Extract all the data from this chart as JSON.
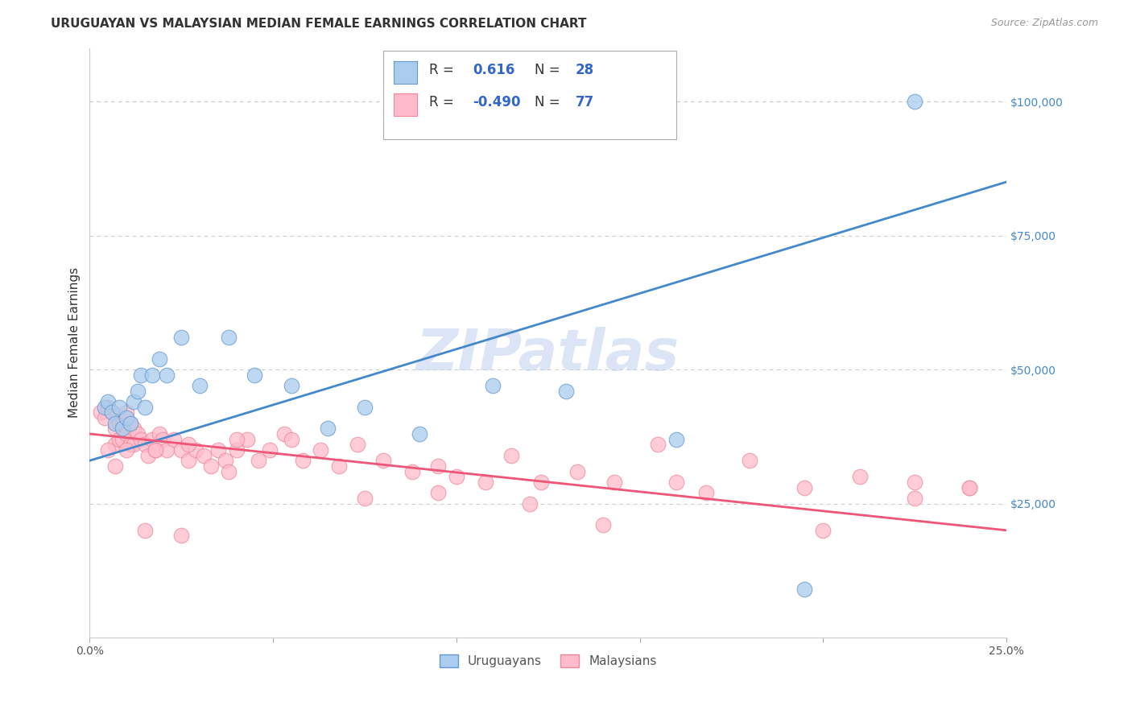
{
  "title": "URUGUAYAN VS MALAYSIAN MEDIAN FEMALE EARNINGS CORRELATION CHART",
  "source": "Source: ZipAtlas.com",
  "ylabel": "Median Female Earnings",
  "xlim": [
    0.0,
    0.25
  ],
  "ylim": [
    0,
    110000
  ],
  "x_ticks": [
    0.0,
    0.05,
    0.1,
    0.15,
    0.2,
    0.25
  ],
  "x_tick_labels": [
    "0.0%",
    "",
    "",
    "",
    "",
    "25.0%"
  ],
  "y_tick_labels_right": [
    "$25,000",
    "$50,000",
    "$75,000",
    "$100,000"
  ],
  "y_tick_values_right": [
    25000,
    50000,
    75000,
    100000
  ],
  "background_color": "#ffffff",
  "grid_color": "#cccccc",
  "blue_fill_color": "#AACCEE",
  "pink_fill_color": "#FFBBCC",
  "blue_edge_color": "#6699CC",
  "pink_edge_color": "#EE8899",
  "blue_line_color": "#4488CC",
  "pink_line_color": "#EE5577",
  "legend_text_color": "#333333",
  "legend_num_color": "#3366CC",
  "watermark": "ZIPatlas",
  "watermark_color": "#BBCCEE",
  "blue_line_x0": 0.0,
  "blue_line_y0": 33000,
  "blue_line_x1": 0.25,
  "blue_line_y1": 85000,
  "pink_line_x0": 0.0,
  "pink_line_y0": 38000,
  "pink_line_x1": 0.25,
  "pink_line_y1": 20000,
  "blue_scatter_x": [
    0.004,
    0.005,
    0.006,
    0.007,
    0.008,
    0.009,
    0.01,
    0.011,
    0.012,
    0.013,
    0.014,
    0.015,
    0.017,
    0.019,
    0.021,
    0.025,
    0.03,
    0.038,
    0.045,
    0.055,
    0.065,
    0.075,
    0.09,
    0.11,
    0.13,
    0.16,
    0.195,
    0.225
  ],
  "blue_scatter_y": [
    43000,
    44000,
    42000,
    40000,
    43000,
    39000,
    41000,
    40000,
    44000,
    46000,
    49000,
    43000,
    49000,
    52000,
    49000,
    56000,
    47000,
    56000,
    49000,
    47000,
    39000,
    43000,
    38000,
    47000,
    46000,
    37000,
    9000,
    100000
  ],
  "pink_scatter_x": [
    0.003,
    0.004,
    0.005,
    0.006,
    0.007,
    0.007,
    0.008,
    0.008,
    0.009,
    0.009,
    0.01,
    0.01,
    0.011,
    0.011,
    0.012,
    0.012,
    0.013,
    0.014,
    0.015,
    0.016,
    0.017,
    0.018,
    0.019,
    0.02,
    0.021,
    0.023,
    0.025,
    0.027,
    0.029,
    0.031,
    0.033,
    0.035,
    0.037,
    0.04,
    0.043,
    0.046,
    0.049,
    0.053,
    0.058,
    0.063,
    0.068,
    0.073,
    0.08,
    0.088,
    0.095,
    0.1,
    0.108,
    0.115,
    0.123,
    0.133,
    0.143,
    0.155,
    0.168,
    0.18,
    0.195,
    0.21,
    0.225,
    0.24,
    0.007,
    0.015,
    0.025,
    0.038,
    0.055,
    0.075,
    0.095,
    0.12,
    0.14,
    0.16,
    0.2,
    0.225,
    0.24,
    0.005,
    0.01,
    0.018,
    0.027,
    0.04
  ],
  "pink_scatter_y": [
    42000,
    41000,
    43000,
    42000,
    39000,
    36000,
    40000,
    37000,
    40000,
    37000,
    42000,
    38000,
    40000,
    36000,
    39000,
    36000,
    38000,
    37000,
    36000,
    34000,
    37000,
    35000,
    38000,
    37000,
    35000,
    37000,
    35000,
    33000,
    35000,
    34000,
    32000,
    35000,
    33000,
    35000,
    37000,
    33000,
    35000,
    38000,
    33000,
    35000,
    32000,
    36000,
    33000,
    31000,
    32000,
    30000,
    29000,
    34000,
    29000,
    31000,
    29000,
    36000,
    27000,
    33000,
    28000,
    30000,
    29000,
    28000,
    32000,
    20000,
    19000,
    31000,
    37000,
    26000,
    27000,
    25000,
    21000,
    29000,
    20000,
    26000,
    28000,
    35000,
    35000,
    35000,
    36000,
    37000
  ],
  "title_fontsize": 11,
  "source_fontsize": 9,
  "axis_label_fontsize": 11,
  "tick_fontsize": 10,
  "legend_fontsize": 12,
  "watermark_fontsize": 52,
  "marker_size": 180
}
